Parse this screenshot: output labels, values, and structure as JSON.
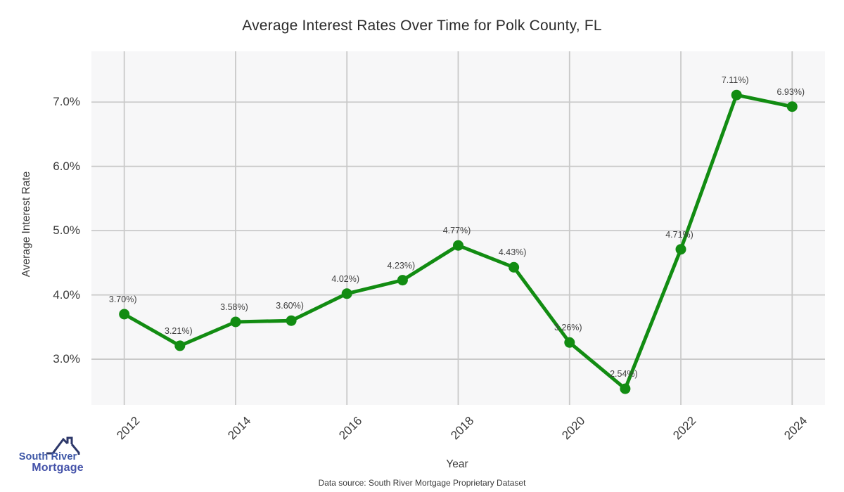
{
  "chart_data": {
    "type": "line",
    "title": "Average Interest Rates Over Time for Polk County, FL",
    "xlabel": "Year",
    "ylabel": "Average Interest Rate",
    "x": [
      2012,
      2013,
      2014,
      2015,
      2016,
      2017,
      2018,
      2019,
      2020,
      2021,
      2022,
      2023,
      2024
    ],
    "values": [
      3.7,
      3.21,
      3.58,
      3.6,
      4.02,
      4.23,
      4.77,
      4.43,
      3.26,
      2.54,
      4.71,
      7.11,
      6.93
    ],
    "point_labels": [
      "3.70%)",
      "3.21%)",
      "3.58%)",
      "3.60%)",
      "4.02%)",
      "4.23%)",
      "4.77%)",
      "4.43%)",
      "3.26%)",
      "2.54%)",
      "4.71%)",
      "7.11%)",
      "6.93%)"
    ],
    "xticks": [
      2012,
      2014,
      2016,
      2018,
      2020,
      2022,
      2024
    ],
    "yticks": [
      {
        "value": 3.0,
        "label": "3.0%"
      },
      {
        "value": 4.0,
        "label": "4.0%"
      },
      {
        "value": 5.0,
        "label": "5.0%"
      },
      {
        "value": 6.0,
        "label": "6.0%"
      },
      {
        "value": 7.0,
        "label": "7.0%"
      }
    ],
    "xlim": [
      2011.41,
      2024.59
    ],
    "ylim": [
      2.29,
      7.79
    ],
    "grid": true,
    "legend_position": "none",
    "line_color": "#128c12",
    "marker_color": "#128c12",
    "plot_bg_color": "#f7f7f8",
    "grid_color": "#c9c9c9",
    "label_color": "#404040"
  },
  "footer": {
    "source": "Data source: South River Mortgage Proprietary Dataset"
  },
  "logo": {
    "line1": "South River",
    "line2": "Mortgage",
    "roof_color": "#2c3769",
    "text_color": "#3c56a6"
  }
}
